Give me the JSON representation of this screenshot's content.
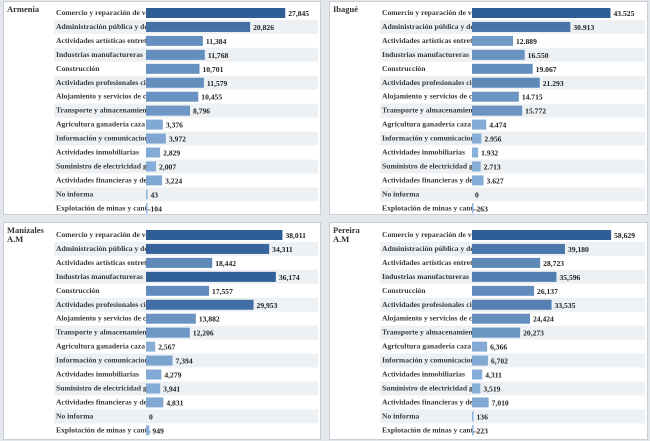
{
  "colors": {
    "bar_dark": "#2f5d96",
    "bar_light": "#8db4dc",
    "bar_mid": "#5e8fc3"
  },
  "categories": [
    "Comercio y reparación de ve..",
    "Administración pública y de..",
    "Actividades artísticas entrete..",
    "Industrias manufactureras",
    "Construcción",
    "Actividades profesionales cie..",
    "Alojamiento y servicios de co..",
    "Transporte y almacenamiento",
    "Agricultura ganadería caza s..",
    "Información y comunicacion..",
    "Actividades inmobiliarias",
    "Suministro de electricidad g..",
    "Actividades financieras y de ..",
    "No informa",
    "Explotación de minas y cant.."
  ],
  "chart_data": [
    {
      "type": "bar",
      "title": "Armenia",
      "orientation": "horizontal",
      "values": [
        27845,
        20826,
        11384,
        11768,
        10701,
        11579,
        10455,
        8796,
        3376,
        3972,
        2829,
        2007,
        3224,
        43,
        104
      ],
      "labels": [
        "27,845",
        "20,826",
        "11,384",
        "11,768",
        "10,701",
        "11,579",
        "10,455",
        "8,796",
        "3,376",
        "3,972",
        "2,829",
        "2,007",
        "3,224",
        "43",
        "104"
      ]
    },
    {
      "type": "bar",
      "title": "Ibagué",
      "orientation": "horizontal",
      "values": [
        43525,
        30913,
        12889,
        16550,
        19067,
        21293,
        14715,
        15772,
        4474,
        2956,
        1932,
        2713,
        3627,
        0,
        263
      ],
      "labels": [
        "43.525",
        "30.913",
        "12.889",
        "16.550",
        "19.067",
        "21.293",
        "14.715",
        "15.772",
        "4.474",
        "2.956",
        "1.932",
        "2.713",
        "3.627",
        "0",
        "263"
      ]
    },
    {
      "type": "bar",
      "title": "Manizales A.M",
      "orientation": "horizontal",
      "values": [
        38011,
        34311,
        18442,
        36174,
        17557,
        29953,
        13882,
        12206,
        2567,
        7394,
        4279,
        3941,
        4831,
        0,
        949
      ],
      "labels": [
        "38,011",
        "34,311",
        "18,442",
        "36,174",
        "17,557",
        "29,953",
        "13,882",
        "12,206",
        "2,567",
        "7,394",
        "4,279",
        "3,941",
        "4,831",
        "0",
        "949"
      ]
    },
    {
      "type": "bar",
      "title": "Pereira A.M",
      "orientation": "horizontal",
      "values": [
        58629,
        39180,
        28723,
        35596,
        26137,
        33535,
        24424,
        20273,
        6366,
        6702,
        4311,
        3519,
        7010,
        136,
        223
      ],
      "labels": [
        "58,629",
        "39,180",
        "28,723",
        "35,596",
        "26,137",
        "33,535",
        "24,424",
        "20,273",
        "6,366",
        "6,702",
        "4,311",
        "3,519",
        "7,010",
        "136",
        "223"
      ]
    }
  ]
}
